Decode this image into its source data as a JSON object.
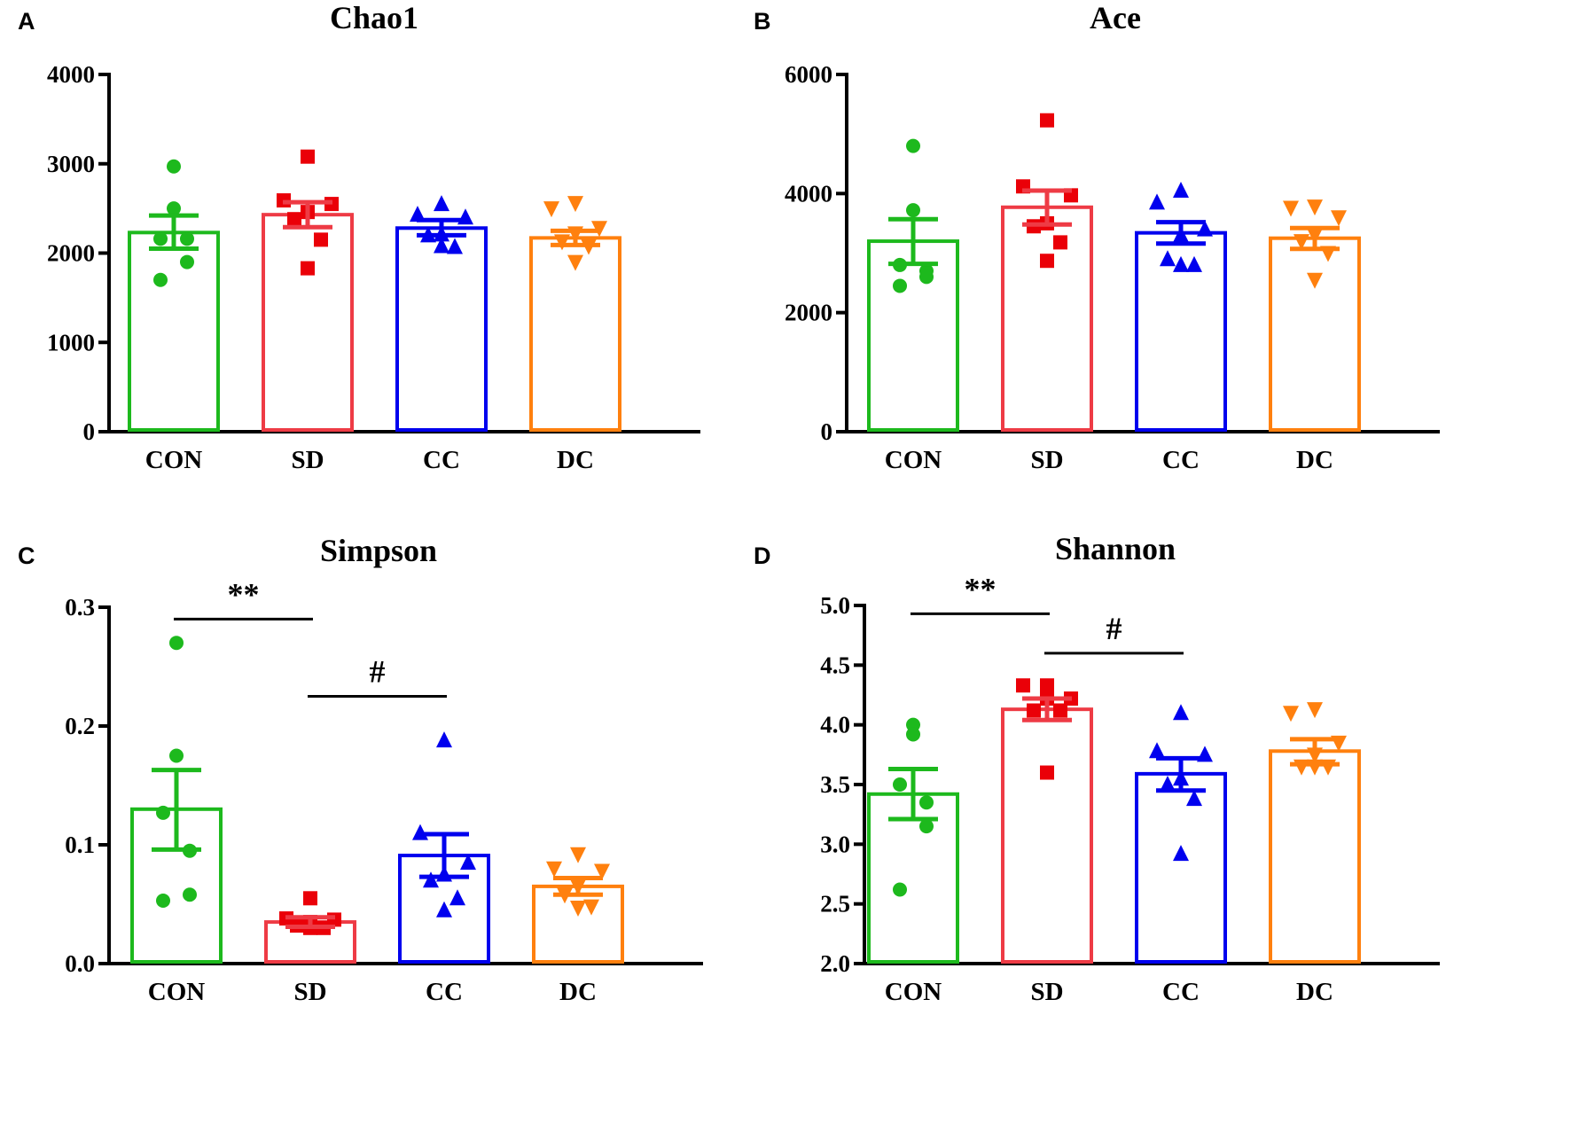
{
  "colors": {
    "CON": "#1db91d",
    "SD": "#ee3b45",
    "SD_points": "#ea0008",
    "CC": "#0000ee",
    "DC": "#ff800e",
    "axis": "#000000"
  },
  "chart_data": [
    {
      "panel": "A",
      "type": "bar",
      "title": "Chao1",
      "categories": [
        "CON",
        "SD",
        "CC",
        "DC"
      ],
      "markers": [
        "circle",
        "square",
        "triangle-up",
        "triangle-down"
      ],
      "ylim": [
        0,
        4000
      ],
      "yticks": [
        0,
        1000,
        2000,
        3000,
        4000
      ],
      "groups": [
        {
          "name": "CON",
          "mean": 2230,
          "sem_upper": 2420,
          "sem_lower": 2050,
          "points": [
            2970,
            2500,
            2160,
            2160,
            1900,
            1700
          ]
        },
        {
          "name": "SD",
          "mean": 2430,
          "sem_upper": 2570,
          "sem_lower": 2290,
          "points": [
            3080,
            2590,
            2550,
            2460,
            2380,
            2150,
            1830
          ]
        },
        {
          "name": "CC",
          "mean": 2280,
          "sem_upper": 2370,
          "sem_lower": 2200,
          "points": [
            2550,
            2430,
            2400,
            2210,
            2200,
            2070,
            2080
          ]
        },
        {
          "name": "DC",
          "mean": 2170,
          "sem_upper": 2250,
          "sem_lower": 2090,
          "points": [
            2560,
            2500,
            2280,
            2220,
            2130,
            2080,
            1900
          ]
        }
      ],
      "significance": []
    },
    {
      "panel": "B",
      "type": "bar",
      "title": "Ace",
      "categories": [
        "CON",
        "SD",
        "CC",
        "DC"
      ],
      "markers": [
        "circle",
        "square",
        "triangle-up",
        "triangle-down"
      ],
      "ylim": [
        0,
        6000
      ],
      "yticks": [
        0,
        2000,
        4000,
        6000
      ],
      "groups": [
        {
          "name": "CON",
          "mean": 3200,
          "sem_upper": 3570,
          "sem_lower": 2820,
          "points": [
            4800,
            3720,
            2800,
            2700,
            2600,
            2450
          ]
        },
        {
          "name": "SD",
          "mean": 3770,
          "sem_upper": 4050,
          "sem_lower": 3480,
          "points": [
            5230,
            4120,
            3970,
            3500,
            3450,
            3180,
            2870
          ]
        },
        {
          "name": "CC",
          "mean": 3340,
          "sem_upper": 3520,
          "sem_lower": 3160,
          "points": [
            4050,
            3850,
            3400,
            3300,
            2900,
            2800,
            2800
          ]
        },
        {
          "name": "DC",
          "mean": 3250,
          "sem_upper": 3420,
          "sem_lower": 3070,
          "points": [
            3780,
            3760,
            3600,
            3300,
            3200,
            3000,
            2550
          ]
        }
      ],
      "significance": []
    },
    {
      "panel": "C",
      "type": "bar",
      "title": "Simpson",
      "categories": [
        "CON",
        "SD",
        "CC",
        "DC"
      ],
      "markers": [
        "circle",
        "square",
        "triangle-up",
        "triangle-down"
      ],
      "ylim": [
        0,
        0.3
      ],
      "yticks": [
        0.0,
        0.1,
        0.2,
        0.3
      ],
      "ytick_labels": [
        "0.0",
        "0.1",
        "0.2",
        "0.3"
      ],
      "groups": [
        {
          "name": "CON",
          "mean": 0.13,
          "sem_upper": 0.163,
          "sem_lower": 0.096,
          "points": [
            0.27,
            0.175,
            0.127,
            0.095,
            0.058,
            0.053
          ]
        },
        {
          "name": "SD",
          "mean": 0.035,
          "sem_upper": 0.039,
          "sem_lower": 0.031,
          "points": [
            0.055,
            0.038,
            0.037,
            0.035,
            0.032,
            0.03,
            0.03
          ]
        },
        {
          "name": "CC",
          "mean": 0.091,
          "sem_upper": 0.109,
          "sem_lower": 0.073,
          "points": [
            0.188,
            0.11,
            0.085,
            0.075,
            0.07,
            0.055,
            0.045
          ]
        },
        {
          "name": "DC",
          "mean": 0.065,
          "sem_upper": 0.072,
          "sem_lower": 0.058,
          "points": [
            0.092,
            0.08,
            0.078,
            0.065,
            0.058,
            0.048,
            0.047
          ]
        }
      ],
      "significance": [
        {
          "from": "CON",
          "to": "SD",
          "y": 0.29,
          "label": "**"
        },
        {
          "from": "SD",
          "to": "CC",
          "y": 0.225,
          "label": "#"
        }
      ]
    },
    {
      "panel": "D",
      "type": "bar",
      "title": "Shannon",
      "categories": [
        "CON",
        "SD",
        "CC",
        "DC"
      ],
      "markers": [
        "circle",
        "square",
        "triangle-up",
        "triangle-down"
      ],
      "ylim": [
        2.0,
        5.0
      ],
      "yticks": [
        2.0,
        2.5,
        3.0,
        3.5,
        4.0,
        4.5,
        5.0
      ],
      "ytick_labels": [
        "2.0",
        "2.5",
        "3.0",
        "3.5",
        "4.0",
        "4.5",
        "5.0"
      ],
      "groups": [
        {
          "name": "CON",
          "mean": 3.42,
          "sem_upper": 3.63,
          "sem_lower": 3.21,
          "points": [
            4.0,
            3.92,
            3.5,
            3.35,
            3.15,
            2.62
          ]
        },
        {
          "name": "SD",
          "mean": 4.13,
          "sem_upper": 4.22,
          "sem_lower": 4.04,
          "points": [
            4.33,
            4.33,
            4.22,
            4.22,
            4.12,
            4.12,
            3.6
          ]
        },
        {
          "name": "CC",
          "mean": 3.59,
          "sem_upper": 3.72,
          "sem_lower": 3.45,
          "points": [
            4.1,
            3.78,
            3.75,
            3.55,
            3.5,
            3.38,
            2.92
          ]
        },
        {
          "name": "DC",
          "mean": 3.78,
          "sem_upper": 3.88,
          "sem_lower": 3.67,
          "points": [
            4.13,
            4.1,
            3.85,
            3.75,
            3.65,
            3.65,
            3.65
          ]
        }
      ],
      "significance": [
        {
          "from": "CON",
          "to": "SD",
          "y": 4.93,
          "label": "**"
        },
        {
          "from": "SD",
          "to": "CC",
          "y": 4.6,
          "label": "#"
        }
      ]
    }
  ]
}
